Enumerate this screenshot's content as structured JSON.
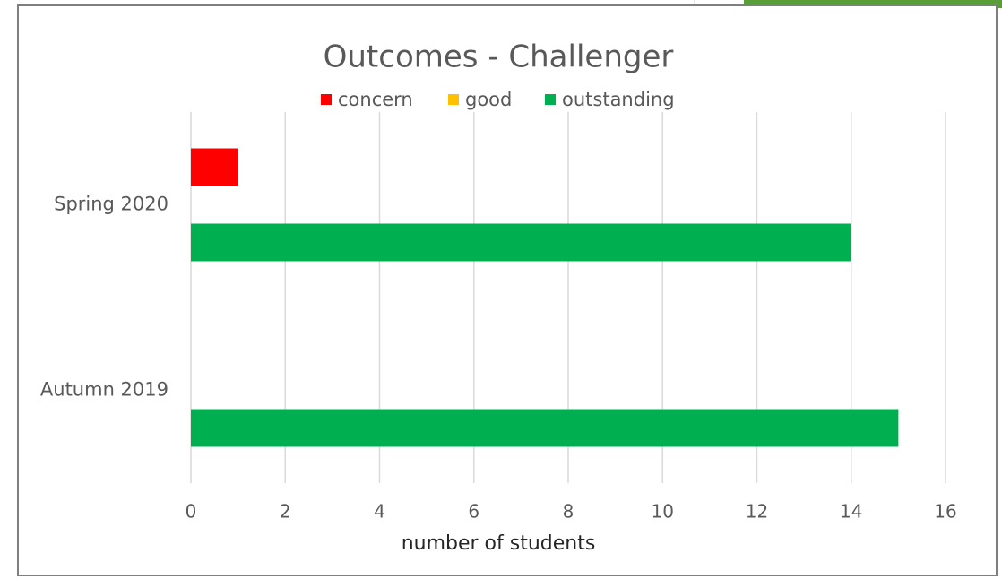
{
  "chart_data": {
    "type": "hbar",
    "title": "Outcomes - Challenger",
    "categories": [
      "Autumn 2019",
      "Spring 2020"
    ],
    "series": [
      {
        "name": "concern",
        "color": "#ff0000",
        "values": [
          0,
          1
        ]
      },
      {
        "name": "good",
        "color": "#ffc000",
        "values": [
          0,
          0
        ]
      },
      {
        "name": "outstanding",
        "color": "#00b050",
        "values": [
          15,
          14
        ]
      }
    ],
    "x_label": "number of students",
    "xlim": [
      0,
      16
    ],
    "xticks": [
      0,
      2,
      4,
      6,
      8,
      10,
      12,
      14,
      16
    ],
    "grid": true,
    "legend": "top"
  }
}
